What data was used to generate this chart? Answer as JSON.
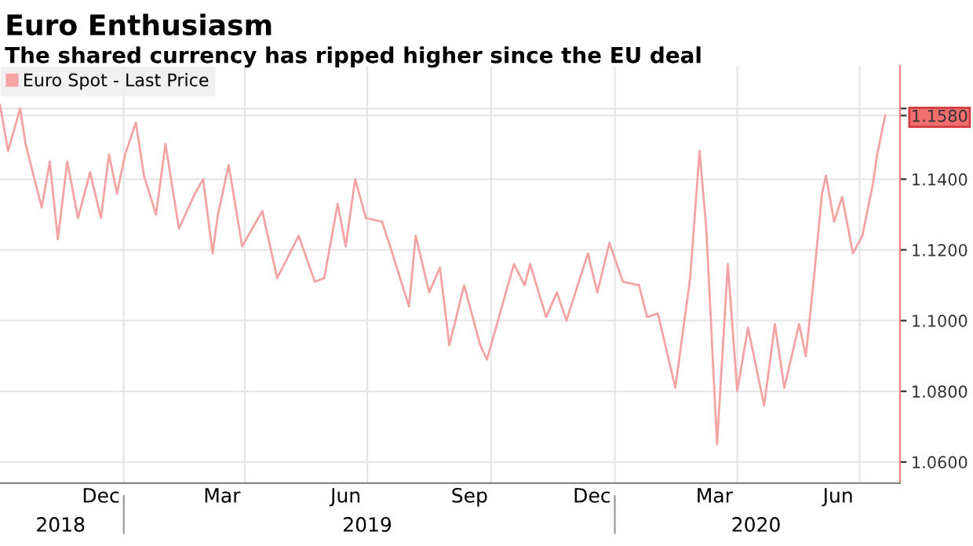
{
  "chart_data": {
    "type": "line",
    "title": "Euro Enthusiasm",
    "subtitle": "The shared currency has ripped higher since the EU deal",
    "x": [
      "2018-10-01",
      "2018-10-07",
      "2018-10-16",
      "2018-10-20",
      "2018-11-01",
      "2018-11-07",
      "2018-11-13",
      "2018-11-20",
      "2018-11-28",
      "2018-12-07",
      "2018-12-15",
      "2018-12-21",
      "2018-12-27",
      "2019-01-02",
      "2019-01-10",
      "2019-01-16",
      "2019-01-25",
      "2019-02-01",
      "2019-02-11",
      "2019-02-23",
      "2019-03-01",
      "2019-03-08",
      "2019-03-12",
      "2019-03-20",
      "2019-03-30",
      "2019-04-14",
      "2019-04-25",
      "2019-05-11",
      "2019-05-23",
      "2019-05-30",
      "2019-06-09",
      "2019-06-15",
      "2019-06-22",
      "2019-06-30",
      "2019-07-12",
      "2019-07-18",
      "2019-08-01",
      "2019-08-06",
      "2019-08-16",
      "2019-08-24",
      "2019-08-31",
      "2019-09-11",
      "2019-09-23",
      "2019-09-28",
      "2019-10-18",
      "2019-10-26",
      "2019-10-30",
      "2019-11-11",
      "2019-11-19",
      "2019-11-26",
      "2019-12-12",
      "2019-12-19",
      "2019-12-28",
      "2020-01-07",
      "2020-01-19",
      "2020-01-25",
      "2020-02-02",
      "2020-02-15",
      "2020-02-26",
      "2020-03-04",
      "2020-03-09",
      "2020-03-17",
      "2020-03-25",
      "2020-04-01",
      "2020-04-09",
      "2020-04-21",
      "2020-04-29",
      "2020-05-06",
      "2020-05-17",
      "2020-05-22",
      "2020-05-28",
      "2020-06-03",
      "2020-06-06",
      "2020-06-12",
      "2020-06-18",
      "2020-06-26",
      "2020-07-03",
      "2020-07-11",
      "2020-07-14",
      "2020-07-20"
    ],
    "series": [
      {
        "name": "Euro Spot - Last Price",
        "color": "#f4a3a3",
        "values": [
          1.161,
          1.148,
          1.16,
          1.15,
          1.132,
          1.145,
          1.123,
          1.145,
          1.129,
          1.142,
          1.129,
          1.147,
          1.136,
          1.147,
          1.156,
          1.141,
          1.13,
          1.15,
          1.126,
          1.136,
          1.14,
          1.119,
          1.13,
          1.144,
          1.121,
          1.131,
          1.112,
          1.124,
          1.111,
          1.112,
          1.133,
          1.121,
          1.14,
          1.129,
          1.128,
          1.121,
          1.104,
          1.124,
          1.108,
          1.115,
          1.093,
          1.11,
          1.093,
          1.089,
          1.116,
          1.11,
          1.116,
          1.101,
          1.108,
          1.1,
          1.119,
          1.108,
          1.122,
          1.111,
          1.11,
          1.101,
          1.102,
          1.081,
          1.112,
          1.148,
          1.126,
          1.065,
          1.116,
          1.08,
          1.098,
          1.076,
          1.099,
          1.081,
          1.099,
          1.09,
          1.112,
          1.136,
          1.141,
          1.128,
          1.135,
          1.119,
          1.124,
          1.139,
          1.147,
          1.158
        ]
      }
    ],
    "xlim": [
      "2018-10-01",
      "2020-07-31"
    ],
    "xticks": [
      {
        "value": "2018-12-15",
        "label": "Dec"
      },
      {
        "value": "2019-01-01",
        "label": null
      },
      {
        "value": "2019-03-15",
        "label": "Mar"
      },
      {
        "value": "2019-04-01",
        "label": null
      },
      {
        "value": "2019-06-15",
        "label": "Jun"
      },
      {
        "value": "2019-07-01",
        "label": null
      },
      {
        "value": "2019-09-15",
        "label": "Sep"
      },
      {
        "value": "2019-10-01",
        "label": null
      },
      {
        "value": "2019-12-15",
        "label": "Dec"
      },
      {
        "value": "2020-01-01",
        "label": null
      },
      {
        "value": "2020-03-15",
        "label": "Mar"
      },
      {
        "value": "2020-04-01",
        "label": null
      },
      {
        "value": "2020-06-15",
        "label": "Jun"
      },
      {
        "value": "2020-07-01",
        "label": null
      }
    ],
    "x2ticks": [
      {
        "value": "2018-11-15",
        "label": "2018"
      },
      {
        "value": "2019-01-01",
        "label": null
      },
      {
        "value": "2019-07-01",
        "label": "2019"
      },
      {
        "value": "2020-01-01",
        "label": null
      },
      {
        "value": "2020-04-15",
        "label": "2020"
      }
    ],
    "ylim": [
      1.054,
      1.172
    ],
    "yticks": [
      {
        "value": 1.06,
        "label": "1.0600"
      },
      {
        "value": 1.08,
        "label": "1.0800"
      },
      {
        "value": 1.1,
        "label": "1.1000"
      },
      {
        "value": 1.12,
        "label": "1.1200"
      },
      {
        "value": 1.14,
        "label": "1.1400"
      },
      {
        "value": 1.158,
        "label": "1.1580"
      },
      {
        "value": 1.16,
        "label": null
      }
    ],
    "x2lim": [
      "2018-10-01",
      "2020-07-31"
    ],
    "grid": true,
    "legend": "top left",
    "marker": "none",
    "line_style": "solid"
  }
}
